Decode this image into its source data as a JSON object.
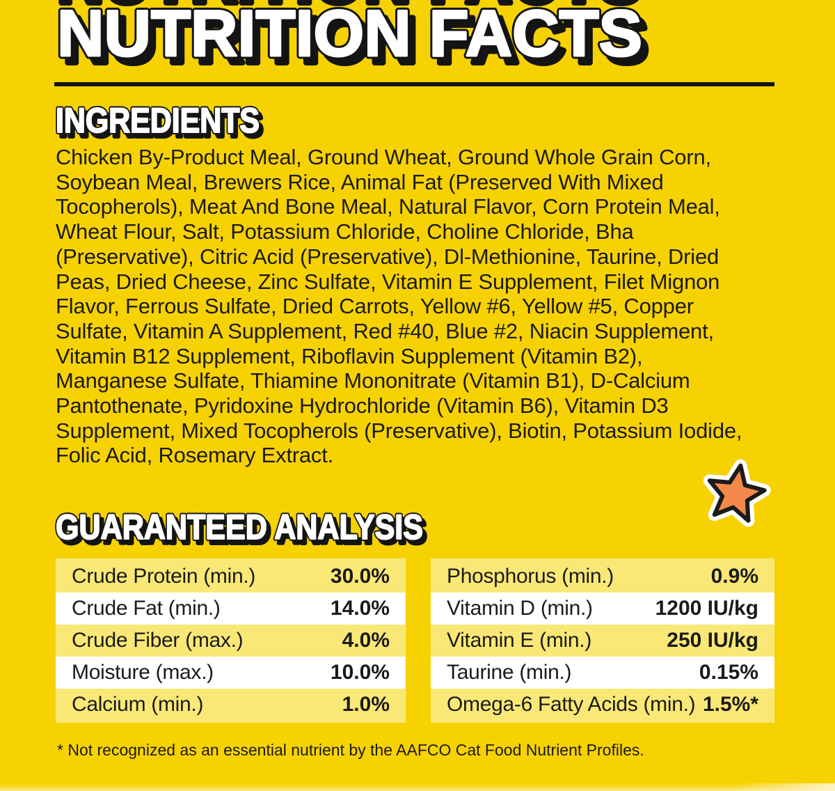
{
  "page": {
    "background_color": "#F7D203",
    "text_color": "#1b1b1b",
    "black_accent": "#141414"
  },
  "title": "NUTRITION FACTS",
  "ingredients": {
    "heading": "INGREDIENTS",
    "lines": [
      "Chicken By-Product Meal, Ground Wheat, Ground Whole Grain Corn,",
      "Soybean Meal, Brewers Rice, Animal Fat (Preserved With Mixed",
      "Tocopherols), Meat And Bone Meal, Natural Flavor, Corn Protein Meal,",
      "Wheat Flour, Salt, Potassium Chloride, Choline Chloride, Bha",
      "(Preservative), Citric Acid (Preservative), Dl-Methionine, Taurine, Dried",
      "Peas, Dried Cheese, Zinc Sulfate, Vitamin E Supplement, Filet Mignon",
      "Flavor, Ferrous Sulfate, Dried Carrots, Yellow #6, Yellow #5, Copper",
      "Sulfate, Vitamin A Supplement, Red #40, Blue #2, Niacin Supplement,",
      "Vitamin B12 Supplement, Riboflavin Supplement (Vitamin B2),",
      "Manganese Sulfate, Thiamine Mononitrate (Vitamin B1), D-Calcium",
      "Pantothenate, Pyridoxine Hydrochloride (Vitamin B6), Vitamin D3",
      "Supplement, Mixed Tocopherols (Preservative), Biotin, Potassium Iodide,",
      "Folic Acid, Rosemary Extract."
    ]
  },
  "star": {
    "fill_color": "#F4884B",
    "outline_color": "#1b1b1b",
    "halo_color": "#FFFFFF"
  },
  "guaranteed_analysis": {
    "heading": "GUARANTEED ANALYSIS",
    "row_colors": {
      "odd": "#FAE876",
      "even": "#FFFFFF"
    },
    "left_table": [
      {
        "label": "Crude Protein (min.)",
        "value": "30.0%"
      },
      {
        "label": "Crude Fat (min.)",
        "value": "14.0%"
      },
      {
        "label": "Crude Fiber (max.)",
        "value": "4.0%"
      },
      {
        "label": "Moisture (max.)",
        "value": "10.0%"
      },
      {
        "label": "Calcium (min.)",
        "value": "1.0%"
      }
    ],
    "right_table": [
      {
        "label": "Phosphorus (min.)",
        "value": "0.9%"
      },
      {
        "label": "Vitamin D (min.)",
        "value": "1200 IU/kg"
      },
      {
        "label": "Vitamin E (min.)",
        "value": "250 IU/kg"
      },
      {
        "label": "Taurine (min.)",
        "value": "0.15%"
      },
      {
        "label": "Omega-6 Fatty Acids (min.)",
        "value": "1.5%*"
      }
    ]
  },
  "footnote": "* Not recognized as an essential nutrient by the AAFCO Cat Food Nutrient Profiles."
}
